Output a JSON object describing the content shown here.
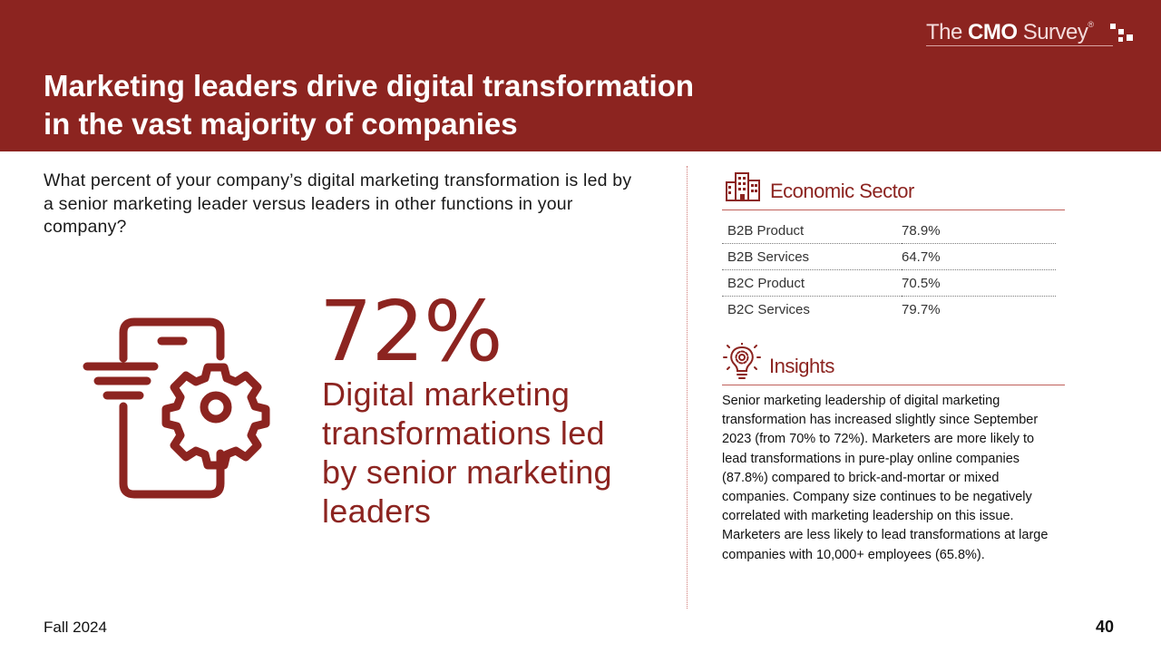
{
  "header": {
    "title_line1": "Marketing leaders drive digital transformation",
    "title_line2": "in the vast majority of companies",
    "logo_prefix": "The ",
    "logo_bold": "CMO",
    "logo_suffix": " Survey",
    "logo_mark": "®"
  },
  "question": "What percent of your company’s digital marketing transformation is led by a senior marketing leader versus leaders in other functions in your company?",
  "stat": {
    "value": "72%",
    "description": "Digital marketing transformations led by senior marketing leaders"
  },
  "sector": {
    "title": "Economic Sector",
    "icon": "buildings-icon",
    "rows": [
      {
        "label": "B2B Product",
        "value": "78.9%"
      },
      {
        "label": "B2B Services",
        "value": "64.7%"
      },
      {
        "label": "B2C Product",
        "value": "70.5%"
      },
      {
        "label": "B2C Services",
        "value": "79.7%"
      }
    ]
  },
  "insights": {
    "title": "Insights",
    "icon": "lightbulb-gear-icon",
    "text": "Senior marketing leadership of digital marketing transformation has increased slightly since September 2023 (from 70% to 72%). Marketers are more likely to lead transformations in pure-play online companies (87.8%) compared to brick-and-mortar or mixed companies. Company size continues to be negatively correlated with marketing leadership on this issue. Marketers are less likely to lead transformations at large companies with 10,000+ employees (65.8%)."
  },
  "footer": {
    "edition": "Fall 2024",
    "page_number": "40"
  },
  "colors": {
    "brand": "#8c2420",
    "rule": "#c0605b"
  }
}
